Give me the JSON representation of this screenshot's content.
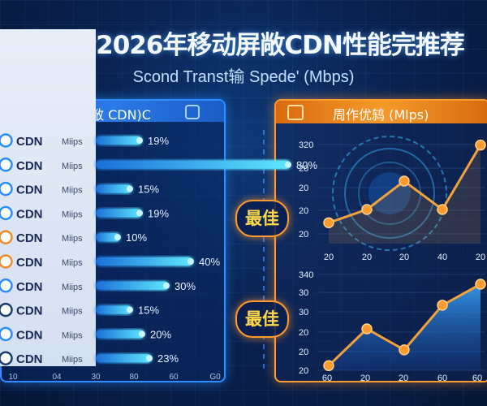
{
  "title": "蔡鎹行2026年移动屏敞CDN性能完推荐",
  "subtitle": "Scond Transt输 Spede' (Mbps)",
  "left_panel": {
    "header": "移动屏敞 CDN)C"
  },
  "right_panel": {
    "header": "周作优鸫 (Mlps)"
  },
  "badges": {
    "best_top": "最佳",
    "best_bottom": "最佳"
  },
  "colors": {
    "bar": "#3fd0ff",
    "accent": "#ff9a2e",
    "line": "#f2a23a",
    "area": "#3aa8ff"
  },
  "chart_data": [
    {
      "type": "bar",
      "orientation": "horizontal",
      "rows": [
        {
          "provider": "CDN",
          "unit": "Miips",
          "value_label": "19%",
          "value": 19,
          "icon": "cloud-icon",
          "icon_color": "#2a8cff"
        },
        {
          "provider": "CDN",
          "unit": "Miips",
          "value_label": "80%",
          "value": 80,
          "icon": "cloud-icon",
          "icon_color": "#2a8cff"
        },
        {
          "provider": "CDN",
          "unit": "Miips",
          "value_label": "15%",
          "value": 15,
          "icon": "bolt-icon",
          "icon_color": "#2a8cff"
        },
        {
          "provider": "CDN",
          "unit": "Miips",
          "value_label": "19%",
          "value": 19,
          "icon": "swirl-icon",
          "icon_color": "#2a8cff"
        },
        {
          "provider": "CDN",
          "unit": "Miips",
          "value_label": "10%",
          "value": 10,
          "icon": "flower-icon",
          "icon_color": "#f08a2a"
        },
        {
          "provider": "CDN",
          "unit": "Miips",
          "value_label": "40%",
          "value": 40,
          "icon": "bolt-icon",
          "icon_color": "#f08a2a"
        },
        {
          "provider": "CDN",
          "unit": "Miips",
          "value_label": "30%",
          "value": 30,
          "icon": "wave-icon",
          "icon_color": "#2a8cff"
        },
        {
          "provider": "CDN",
          "unit": "Miips",
          "value_label": "15%",
          "value": 15,
          "icon": "star-icon",
          "icon_color": "#1a3a70"
        },
        {
          "provider": "CDN",
          "unit": "Miips",
          "value_label": "20%",
          "value": 20,
          "icon": "globe-icon",
          "icon_color": "#2a8cff"
        },
        {
          "provider": "CDN",
          "unit": "Miips",
          "value_label": "23%",
          "value": 23,
          "icon": "swirl-icon",
          "icon_color": "#1a3a70"
        }
      ],
      "xticks": [
        "10",
        "04",
        "30",
        "80",
        "60",
        "G0"
      ]
    },
    {
      "type": "line",
      "points": [
        {
          "label": "20",
          "y": 75
        },
        {
          "label": "20",
          "y": 110
        },
        {
          "label": "",
          "y": 185
        },
        {
          "label": "40",
          "y": 110
        },
        {
          "label": "20",
          "y": 280
        }
      ],
      "ylim": [
        20,
        320
      ],
      "yticks": [
        "320",
        "20",
        "20",
        "20",
        "20"
      ],
      "xticks": [
        "20",
        "20",
        "20",
        "40",
        "20"
      ]
    },
    {
      "type": "area",
      "points": [
        {
          "label": "60",
          "y": 30
        },
        {
          "label": "20",
          "y": 170
        },
        {
          "label": "20",
          "y": 90
        },
        {
          "label": "60",
          "y": 260
        },
        {
          "label": "60",
          "y": 340
        }
      ],
      "ylim": [
        0,
        340
      ],
      "yticks": [
        "340",
        "30",
        "30",
        "20",
        "20",
        "20"
      ],
      "xticks": [
        "60",
        "20",
        "20",
        "60",
        "60"
      ]
    }
  ]
}
